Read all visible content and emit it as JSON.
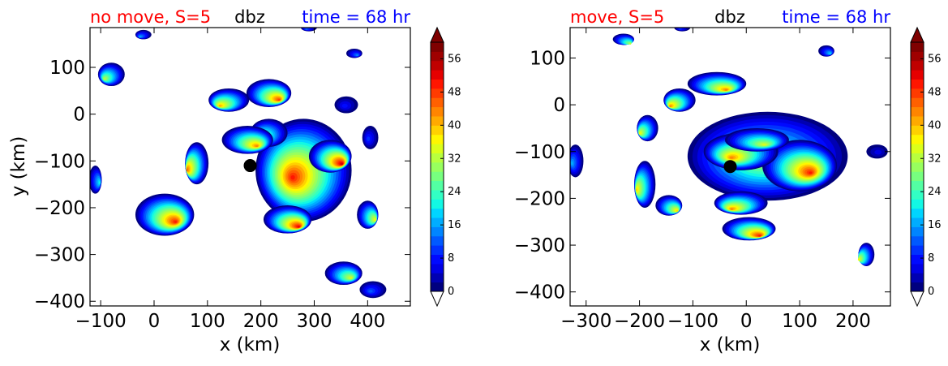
{
  "chart_data": [
    {
      "type": "heatmap",
      "title_left": "no move, S=5",
      "title_center": "dbz",
      "title_right": "time = 68 hr",
      "xlabel": "x (km)",
      "ylabel": "y (km)",
      "xlim": [
        -120,
        480
      ],
      "ylim": [
        -410,
        185
      ],
      "xticks": [
        -100,
        0,
        100,
        200,
        300,
        400
      ],
      "xtick_labels": [
        "−100",
        "0",
        "100",
        "200",
        "300",
        "400"
      ],
      "yticks": [
        100,
        0,
        -100,
        -200,
        -300,
        -400
      ],
      "ytick_labels": [
        "100",
        "0",
        "−100",
        "−200",
        "−300",
        "−400"
      ],
      "center_marker": {
        "x": 180,
        "y": -110
      },
      "cells": [
        {
          "x": 280,
          "y": -120,
          "rx": 90,
          "ry": 110,
          "peak": 46
        },
        {
          "x": 330,
          "y": -90,
          "rx": 40,
          "ry": 35,
          "peak": 50
        },
        {
          "x": 360,
          "y": 20,
          "rx": 22,
          "ry": 18,
          "peak": 8
        },
        {
          "x": 250,
          "y": -225,
          "rx": 45,
          "ry": 30,
          "peak": 48
        },
        {
          "x": 215,
          "y": -40,
          "rx": 35,
          "ry": 30,
          "peak": 30
        },
        {
          "x": 175,
          "y": -55,
          "rx": 48,
          "ry": 30,
          "peak": 40
        },
        {
          "x": 140,
          "y": 30,
          "rx": 38,
          "ry": 25,
          "peak": 38
        },
        {
          "x": 215,
          "y": 45,
          "rx": 42,
          "ry": 30,
          "peak": 44
        },
        {
          "x": 80,
          "y": -105,
          "rx": 22,
          "ry": 45,
          "peak": 42
        },
        {
          "x": 20,
          "y": -215,
          "rx": 55,
          "ry": 45,
          "peak": 46
        },
        {
          "x": -80,
          "y": 85,
          "rx": 25,
          "ry": 25,
          "peak": 30
        },
        {
          "x": -110,
          "y": -140,
          "rx": 12,
          "ry": 30,
          "peak": 20
        },
        {
          "x": -20,
          "y": 170,
          "rx": 15,
          "ry": 10,
          "peak": 16
        },
        {
          "x": 400,
          "y": -215,
          "rx": 20,
          "ry": 30,
          "peak": 34
        },
        {
          "x": 405,
          "y": -50,
          "rx": 15,
          "ry": 25,
          "peak": 10
        },
        {
          "x": 355,
          "y": -340,
          "rx": 35,
          "ry": 25,
          "peak": 32
        },
        {
          "x": 410,
          "y": -375,
          "rx": 25,
          "ry": 18,
          "peak": 12
        },
        {
          "x": 375,
          "y": 130,
          "rx": 15,
          "ry": 10,
          "peak": 14
        },
        {
          "x": 290,
          "y": 185,
          "rx": 15,
          "ry": 8,
          "peak": 12
        }
      ]
    },
    {
      "type": "heatmap",
      "title_left": "move, S=5",
      "title_center": "dbz",
      "title_right": "time = 68 hr",
      "xlabel": "x (km)",
      "ylabel": "",
      "xlim": [
        -330,
        270
      ],
      "ylim": [
        -430,
        165
      ],
      "xticks": [
        -300,
        -200,
        -100,
        0,
        100,
        200
      ],
      "xtick_labels": [
        "−300",
        "−200",
        "−100",
        "0",
        "100",
        "200"
      ],
      "yticks": [
        100,
        0,
        -100,
        -200,
        -300,
        -400
      ],
      "ytick_labels": [
        "100",
        "0",
        "−100",
        "−200",
        "−300",
        "−400"
      ],
      "center_marker": {
        "x": -30,
        "y": -132
      },
      "cells": [
        {
          "x": 40,
          "y": -110,
          "rx": 150,
          "ry": 95,
          "peak": 30
        },
        {
          "x": 100,
          "y": -130,
          "rx": 70,
          "ry": 55,
          "peak": 46
        },
        {
          "x": -10,
          "y": -100,
          "rx": 70,
          "ry": 40,
          "peak": 40
        },
        {
          "x": 20,
          "y": -75,
          "rx": 60,
          "ry": 25,
          "peak": 32
        },
        {
          "x": -10,
          "y": -210,
          "rx": 50,
          "ry": 25,
          "peak": 40
        },
        {
          "x": 5,
          "y": -265,
          "rx": 50,
          "ry": 25,
          "peak": 46
        },
        {
          "x": -125,
          "y": 10,
          "rx": 30,
          "ry": 25,
          "peak": 40
        },
        {
          "x": -55,
          "y": 45,
          "rx": 55,
          "ry": 25,
          "peak": 40
        },
        {
          "x": -185,
          "y": -50,
          "rx": 20,
          "ry": 28,
          "peak": 34
        },
        {
          "x": -230,
          "y": 140,
          "rx": 20,
          "ry": 12,
          "peak": 30
        },
        {
          "x": -190,
          "y": -170,
          "rx": 20,
          "ry": 50,
          "peak": 36
        },
        {
          "x": -145,
          "y": -215,
          "rx": 25,
          "ry": 22,
          "peak": 36
        },
        {
          "x": -320,
          "y": -120,
          "rx": 15,
          "ry": 35,
          "peak": 16
        },
        {
          "x": 150,
          "y": 115,
          "rx": 15,
          "ry": 12,
          "peak": 18
        },
        {
          "x": 225,
          "y": -320,
          "rx": 15,
          "ry": 25,
          "peak": 34
        },
        {
          "x": 245,
          "y": -100,
          "rx": 20,
          "ry": 15,
          "peak": 6
        },
        {
          "x": -120,
          "y": 165,
          "rx": 15,
          "ry": 8,
          "peak": 10
        }
      ]
    }
  ],
  "colorbar": {
    "min": 0,
    "max": 60,
    "step": 2,
    "ticks": [
      0,
      8,
      16,
      24,
      32,
      40,
      48,
      56
    ],
    "tick_labels": [
      "0",
      "8",
      "16",
      "24",
      "32",
      "40",
      "48",
      "56"
    ],
    "colormap": "jet",
    "colors": [
      "#00007f",
      "#0000b2",
      "#0000e5",
      "#0009ff",
      "#0031ff",
      "#0059ff",
      "#0085ff",
      "#00adff",
      "#00d5ff",
      "#12f8e4",
      "#32ffc4",
      "#53ffa3",
      "#77ff7f",
      "#98ff5e",
      "#b8ff3e",
      "#dcff1a",
      "#fff700",
      "#ffd100",
      "#ffaa00",
      "#ff8500",
      "#ff6000",
      "#ff3b00",
      "#ff1600",
      "#e50000",
      "#bf0000",
      "#9f0000",
      "#7f0000"
    ],
    "under_color": "#ffffff",
    "over_color": "#7f0000"
  },
  "marker_color": "#000000",
  "title_colors": {
    "left": "#ff0000",
    "center": "#000000",
    "right": "#0000ff"
  }
}
